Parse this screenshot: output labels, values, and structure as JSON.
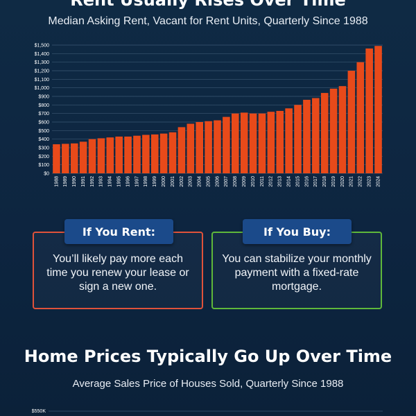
{
  "header": {
    "title": "Rent Usually Rises Over Time",
    "subtitle": "Median Asking Rent, Vacant for Rent Units, Quarterly Since 1988"
  },
  "cards": {
    "rent": {
      "label": "If You Rent:",
      "text": "You’ll likely pay more each time you renew your lease or sign a new one."
    },
    "buy": {
      "label": "If You Buy:",
      "text": "You can stabilize your monthly payment with a fixed-rate mortgage."
    }
  },
  "section2": {
    "title": "Home Prices Typically Go Up Over Time",
    "subtitle": "Average Sales Price of Houses Sold, Quarterly Since 1988",
    "top_tick": "$550K"
  },
  "colors": {
    "bar": "#e84a1a",
    "grid": "#3b5773",
    "rent_border": "#e0523a",
    "buy_border": "#5fb83a",
    "pill": "#1b4a8a"
  },
  "chart_data": {
    "type": "bar",
    "title": "Rent Usually Rises Over Time",
    "subtitle": "Median Asking Rent, Vacant for Rent Units, Quarterly Since 1988",
    "ylim": [
      0,
      1500
    ],
    "yticks": [
      "$0",
      "$100",
      "$200",
      "$300",
      "$400",
      "$500",
      "$600",
      "$700",
      "$800",
      "$900",
      "$1,000",
      "$1,100",
      "$1,200",
      "$1,300",
      "$1,400",
      "$1,500"
    ],
    "grid": true,
    "years": [
      "1988",
      "1989",
      "1990",
      "1991",
      "1992",
      "1993",
      "1994",
      "1995",
      "1996",
      "1997",
      "1998",
      "1999",
      "2000",
      "2001",
      "2002",
      "2003",
      "2004",
      "2005",
      "2006",
      "2007",
      "2008",
      "2009",
      "2010",
      "2011",
      "2012",
      "2013",
      "2014",
      "2015",
      "2016",
      "2017",
      "2018",
      "2019",
      "2020",
      "2021",
      "2022",
      "2023",
      "2024"
    ],
    "annual_values": [
      340,
      345,
      350,
      370,
      400,
      410,
      420,
      430,
      430,
      440,
      450,
      455,
      465,
      480,
      540,
      580,
      600,
      610,
      620,
      660,
      700,
      710,
      700,
      700,
      720,
      730,
      760,
      800,
      860,
      880,
      940,
      990,
      1020,
      1200,
      1300,
      1460,
      1490
    ]
  }
}
